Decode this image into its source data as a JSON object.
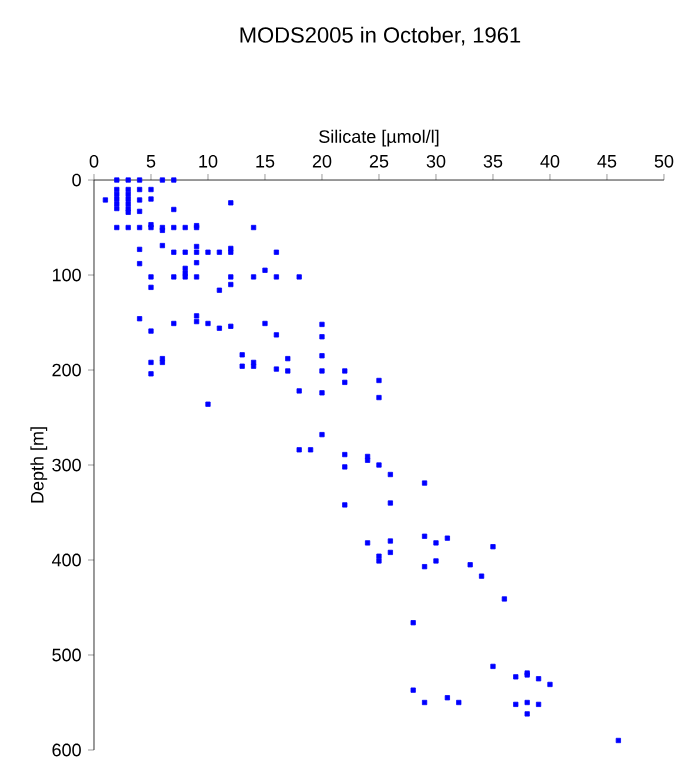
{
  "chart_data": {
    "type": "scatter",
    "title": "MODS2005 in October, 1961",
    "xlabel": "Silicate [µmol/l]",
    "ylabel": "Depth [m]",
    "xlim": [
      0,
      50
    ],
    "xticks": [
      0,
      5,
      10,
      15,
      20,
      25,
      30,
      35,
      40,
      45,
      50
    ],
    "ylim": [
      600,
      0
    ],
    "yticks": [
      0,
      100,
      200,
      300,
      400,
      500,
      600
    ],
    "grid": false,
    "marker": "square",
    "series": [
      {
        "color": "#0000ff",
        "x": [
          2,
          3,
          4,
          6,
          7,
          2,
          2,
          2,
          2,
          2,
          3,
          3,
          3,
          3,
          3,
          3,
          4,
          4,
          4,
          5,
          5,
          1,
          7,
          12,
          2,
          3,
          4,
          5,
          6,
          7,
          8,
          9,
          14,
          5,
          6,
          9,
          4,
          6,
          7,
          8,
          9,
          9,
          10,
          11,
          12,
          12,
          16,
          4,
          9,
          8,
          8,
          5,
          7,
          8,
          9,
          12,
          14,
          16,
          18,
          15,
          5,
          12,
          11,
          4,
          7,
          9,
          9,
          10,
          11,
          12,
          15,
          20,
          5,
          16,
          20,
          13,
          17,
          20,
          5,
          6,
          6,
          13,
          14,
          14,
          16,
          17,
          20,
          22,
          5,
          22,
          25,
          25,
          18,
          20,
          10,
          20,
          18,
          19,
          22,
          24,
          24,
          25,
          22,
          26,
          29,
          22,
          26,
          24,
          26,
          29,
          31,
          35,
          30,
          25,
          25,
          26,
          29,
          30,
          33,
          34,
          36,
          28,
          35,
          37,
          38,
          38,
          39,
          40,
          28,
          29,
          31,
          32,
          37,
          38,
          39,
          38,
          46
        ],
        "values": [
          0,
          0,
          0,
          0,
          0,
          10,
          15,
          20,
          25,
          30,
          10,
          15,
          20,
          25,
          30,
          34,
          10,
          21,
          33,
          10,
          20,
          21,
          31,
          24,
          50,
          50,
          50,
          50,
          50,
          50,
          50,
          50,
          50,
          47,
          53,
          48,
          73,
          69,
          76,
          76,
          70,
          76,
          76,
          76,
          72,
          76,
          76,
          88,
          87,
          93,
          98,
          102,
          102,
          102,
          102,
          102,
          102,
          102,
          102,
          95,
          113,
          110,
          116,
          146,
          151,
          143,
          149,
          151,
          156,
          154,
          151,
          152,
          159,
          163,
          165,
          184,
          188,
          185,
          192,
          188,
          192,
          196,
          192,
          196,
          199,
          201,
          201,
          201,
          204,
          213,
          211,
          229,
          222,
          224,
          236,
          268,
          284,
          284,
          289,
          291,
          295,
          300,
          302,
          310,
          319,
          342,
          340,
          382,
          380,
          375,
          377,
          386,
          382,
          396,
          401,
          392,
          407,
          401,
          405,
          417,
          441,
          466,
          512,
          523,
          519,
          521,
          525,
          531,
          537,
          550,
          545,
          550,
          552,
          550,
          552,
          562,
          590
        ]
      }
    ]
  }
}
